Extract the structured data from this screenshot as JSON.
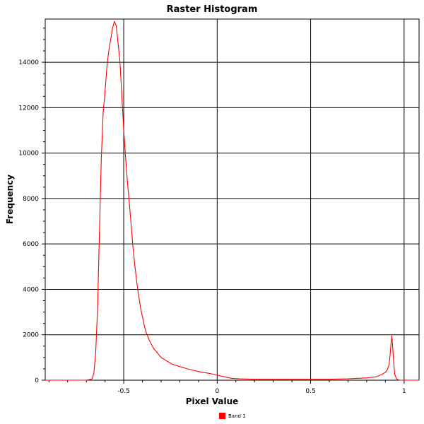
{
  "colors": {
    "series": "#ff0000",
    "grid": "#000000",
    "background": "#ffffff"
  },
  "chart_data": {
    "type": "line",
    "title": "Raster Histogram",
    "xlabel": "Pixel Value",
    "ylabel": "Frequency",
    "xlim": [
      -0.92,
      1.08
    ],
    "ylim": [
      0,
      15900
    ],
    "xticks": [
      -0.5,
      0,
      0.5,
      1
    ],
    "xtick_labels": [
      "-0.5",
      "0",
      "0.5",
      "1"
    ],
    "yticks": [
      0,
      2000,
      4000,
      6000,
      8000,
      10000,
      12000,
      14000
    ],
    "ytick_labels": [
      "0",
      "2000",
      "4000",
      "6000",
      "8000",
      "10000",
      "12000",
      "14000"
    ],
    "grid": true,
    "legend": "bottom-center",
    "series": [
      {
        "name": "Band 1",
        "color": "#ff0000",
        "x": [
          -0.92,
          -0.7,
          -0.67,
          -0.66,
          -0.65,
          -0.64,
          -0.63,
          -0.62,
          -0.61,
          -0.6,
          -0.59,
          -0.58,
          -0.57,
          -0.56,
          -0.55,
          -0.54,
          -0.53,
          -0.52,
          -0.51,
          -0.5,
          -0.49,
          -0.48,
          -0.47,
          -0.46,
          -0.45,
          -0.44,
          -0.43,
          -0.42,
          -0.41,
          -0.4,
          -0.39,
          -0.38,
          -0.37,
          -0.36,
          -0.34,
          -0.32,
          -0.3,
          -0.27,
          -0.24,
          -0.2,
          -0.16,
          -0.12,
          -0.08,
          -0.04,
          -0.02,
          0.0,
          0.02,
          0.05,
          0.08,
          0.12,
          0.2,
          0.3,
          0.4,
          0.5,
          0.6,
          0.7,
          0.75,
          0.8,
          0.85,
          0.88,
          0.9,
          0.91,
          0.92,
          0.925,
          0.93,
          0.935,
          0.94,
          0.945,
          0.95,
          0.96,
          0.97,
          0.98,
          1.0,
          1.04,
          1.08
        ],
        "y": [
          0,
          0,
          50,
          300,
          1200,
          3200,
          6500,
          9800,
          11800,
          12700,
          13800,
          14500,
          15000,
          15500,
          15800,
          15600,
          14800,
          14000,
          12500,
          11000,
          9800,
          8700,
          7800,
          6800,
          5800,
          5000,
          4300,
          3700,
          3200,
          2800,
          2400,
          2100,
          1900,
          1700,
          1400,
          1200,
          1000,
          850,
          700,
          600,
          500,
          420,
          350,
          300,
          260,
          220,
          180,
          130,
          80,
          60,
          40,
          40,
          40,
          40,
          40,
          60,
          80,
          100,
          150,
          250,
          350,
          450,
          700,
          1100,
          1600,
          1950,
          1300,
          700,
          250,
          50,
          10,
          0,
          0,
          0,
          0
        ]
      }
    ]
  }
}
